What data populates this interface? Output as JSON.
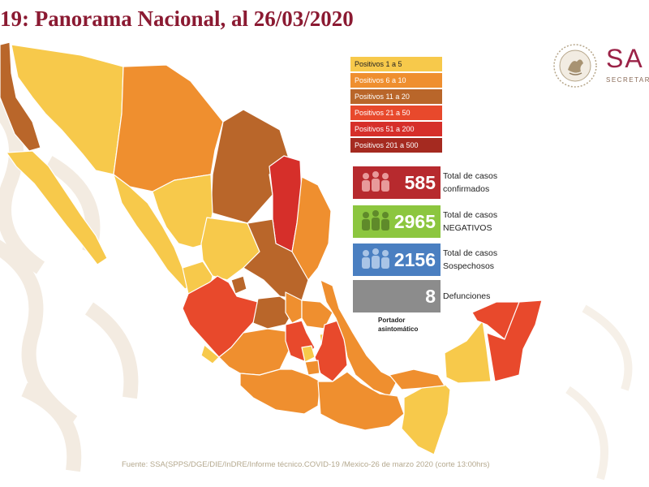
{
  "title": "19: Panorama Nacional, al 26/03/2020",
  "logo": {
    "text": "SA",
    "subtitle": "SECRETAR",
    "icon": "eagle-seal-icon"
  },
  "legend": [
    {
      "label": "Positivos 1 a 5",
      "color": "#f7c94b"
    },
    {
      "label": "Positivos 6 a 10",
      "color": "#ef8f2f"
    },
    {
      "label": "Positivos 11 a 20",
      "color": "#b9662a"
    },
    {
      "label": "Positivos 21 a 50",
      "color": "#e8492c"
    },
    {
      "label": "Positivos 51 a 200",
      "color": "#d62f2a"
    },
    {
      "label": "Positivos 201 a 500",
      "color": "#a52a20"
    }
  ],
  "stats": [
    {
      "value": "585",
      "label_line1": "Total de casos",
      "label_line2": "confirmados",
      "color": "#b72a2e",
      "icon": "people-icon"
    },
    {
      "value": "2965",
      "label_line1": "Total de casos",
      "label_line2": "NEGATIVOS",
      "color": "#8cc63f",
      "icon": "people-icon"
    },
    {
      "value": "2156",
      "label_line1": "Total de casos",
      "label_line2": "Sospechosos",
      "color": "#4a7fc1",
      "icon": "people-icon"
    },
    {
      "value": "8",
      "label_line1": "Defunciones",
      "label_line2": "",
      "color": "#8c8c8c",
      "icon": ""
    }
  ],
  "portador": {
    "line1": "Portador",
    "line2": "asintomático"
  },
  "source": "Fuente: SSA(SPPS/DGE/DIE/InDRE/Informe técnico.COVID-19 /Mexico-26 de marzo 2020 (corte 13:00hrs)",
  "colors": {
    "title": "#8b1a32",
    "map_border": "#ffffff",
    "bg_pattern": "#f4ece2"
  }
}
